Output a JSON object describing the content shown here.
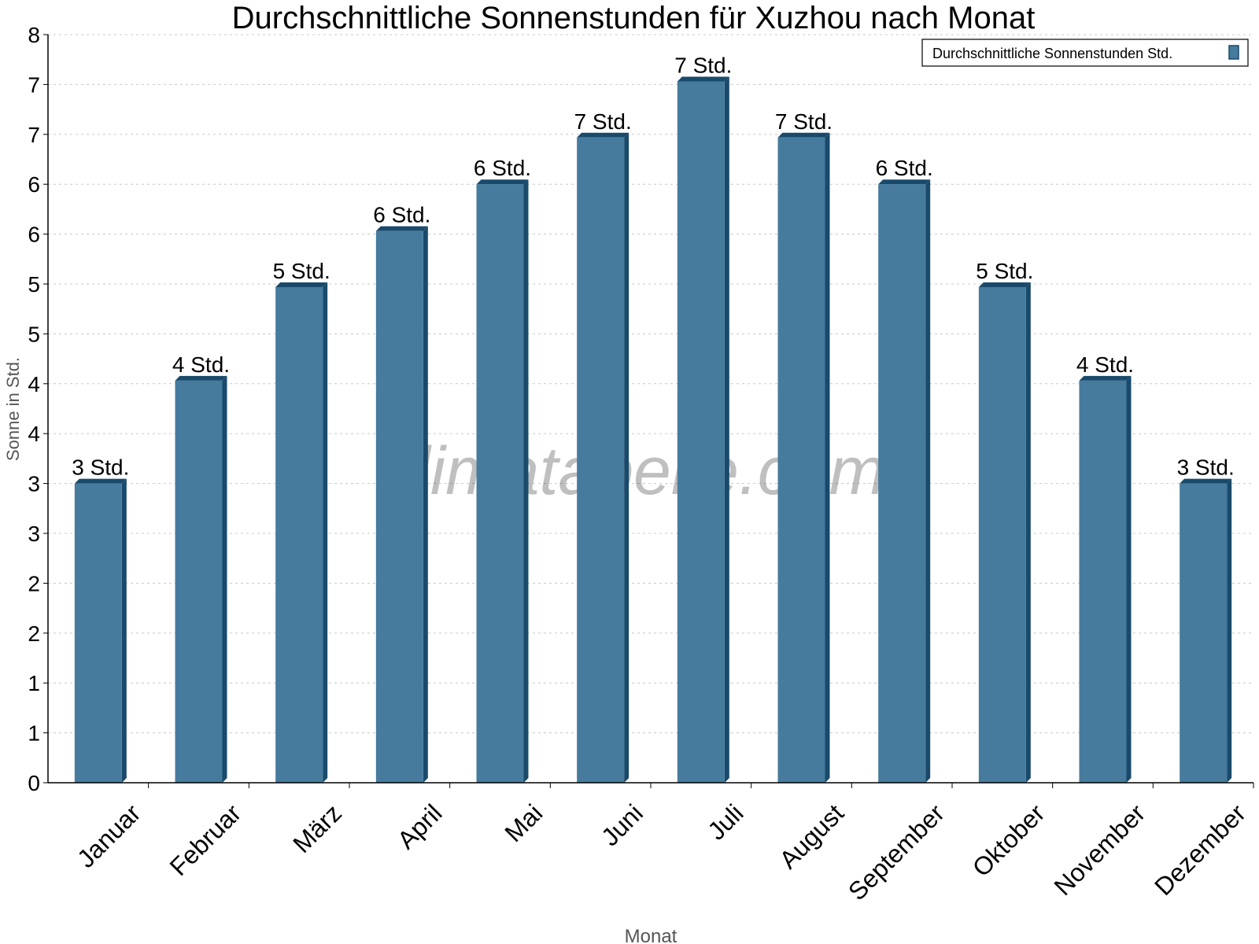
{
  "chart_data": {
    "type": "bar",
    "title": "Durchschnittliche Sonnenstunden für Xuzhou nach Monat",
    "xlabel": "Monat",
    "ylabel": "Sonne in Std.",
    "categories": [
      "Januar",
      "Februar",
      "März",
      "April",
      "Mai",
      "Juni",
      "Juli",
      "August",
      "September",
      "Oktober",
      "November",
      "Dezember"
    ],
    "series": [
      {
        "name": "Durchschnittliche Sonnenstunden Std.",
        "values": [
          3.2,
          4.3,
          5.3,
          5.9,
          6.4,
          6.9,
          7.5,
          6.9,
          6.4,
          5.3,
          4.3,
          3.2
        ],
        "labels": [
          "3 Std.",
          "4 Std.",
          "5 Std.",
          "6 Std.",
          "6 Std.",
          "7 Std.",
          "7 Std.",
          "7 Std.",
          "6 Std.",
          "5 Std.",
          "4 Std.",
          "3 Std."
        ]
      }
    ],
    "ylim": [
      0,
      8
    ],
    "yticks": [
      "0",
      "1",
      "1",
      "2",
      "2",
      "3",
      "3",
      "4",
      "4",
      "5",
      "5",
      "6",
      "6",
      "7",
      "7",
      "8"
    ],
    "grid": true,
    "legend": "top-right",
    "colors": {
      "bar": "#467b9d",
      "bar_side": "#1a4a6b",
      "grid": "#c8c8c8"
    },
    "watermark": "klimatabelle.com"
  }
}
